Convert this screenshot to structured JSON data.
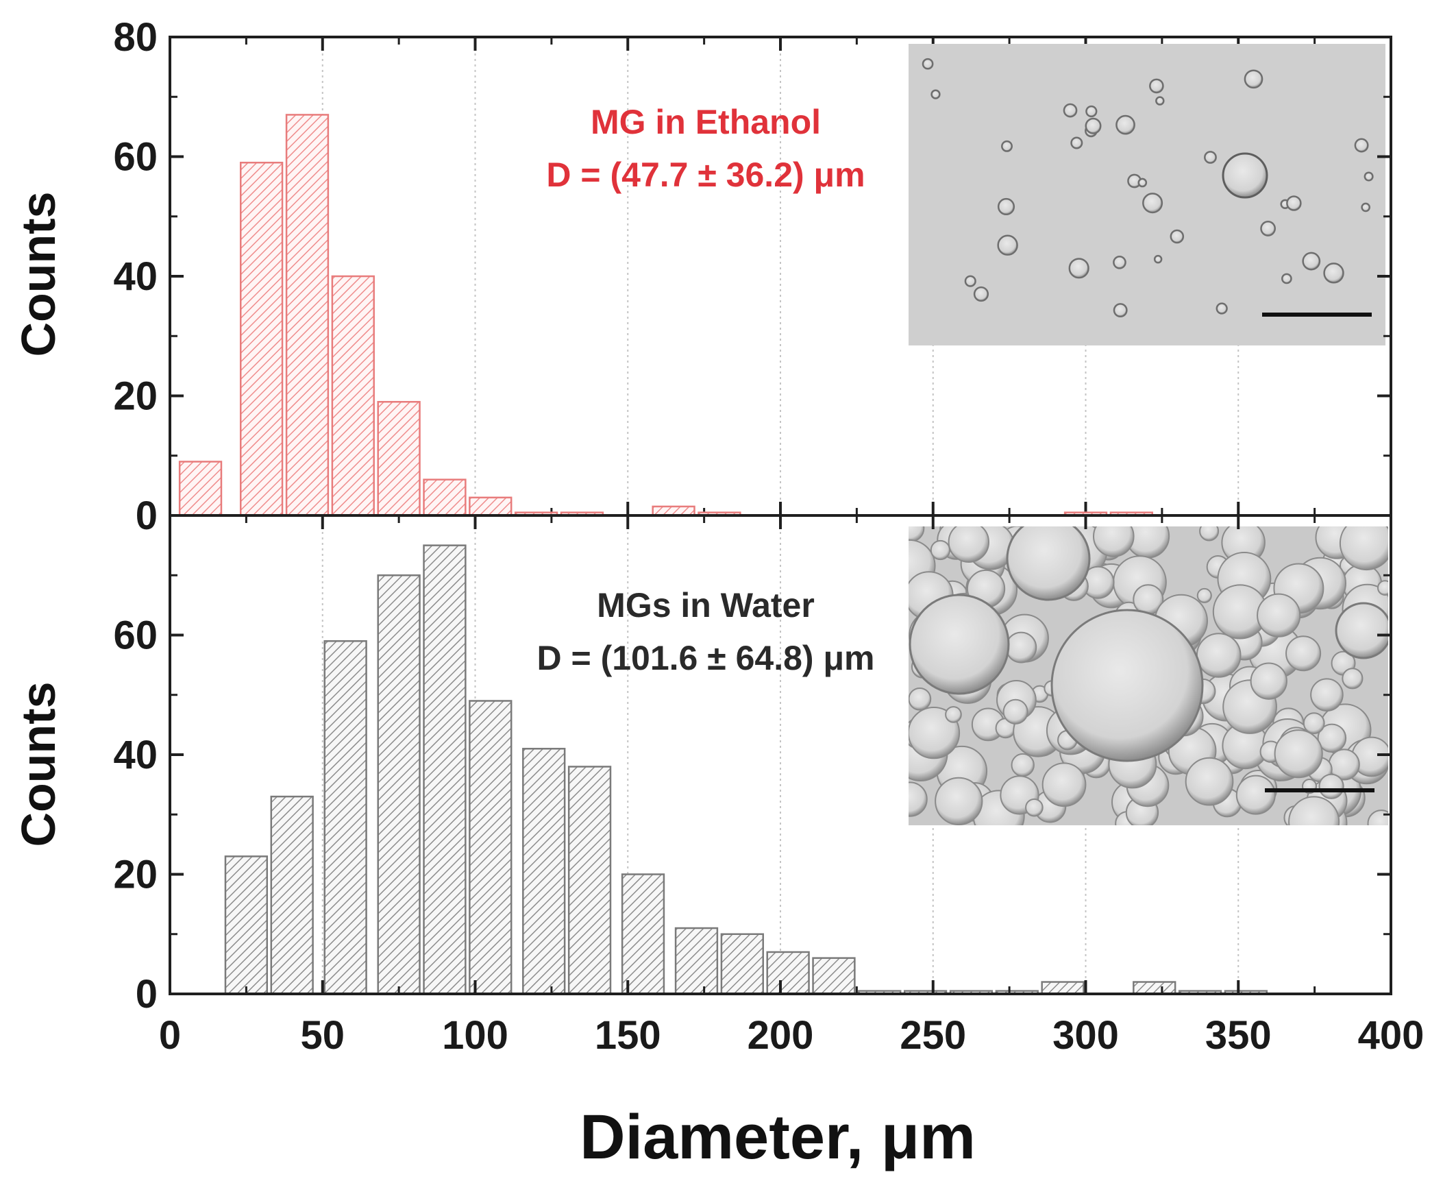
{
  "chart_data": [
    {
      "type": "bar",
      "panel": "top",
      "x": [
        10,
        30,
        45,
        60,
        75,
        90,
        105,
        120,
        135,
        150,
        165,
        180,
        300,
        315
      ],
      "values": [
        9,
        59,
        67,
        40,
        19,
        6,
        3,
        0.5,
        0.5,
        0,
        1.5,
        0.5,
        0.5,
        0.5
      ],
      "bin_width": 15,
      "color": "#f2a3a3",
      "ylabel": "Counts",
      "ylim": [
        0,
        80
      ],
      "yticks": [
        "0",
        "20",
        "40",
        "60",
        "80"
      ],
      "xlim": [
        0,
        400
      ],
      "grid": "vertical-dotted",
      "annotation": {
        "line1": "MG in Ethanol",
        "line2": "D = (47.7 ± 36.2) μm",
        "color": "#e0323a"
      },
      "inset": "micrograph-sparse-droplets"
    },
    {
      "type": "bar",
      "panel": "bottom",
      "x": [
        25,
        40,
        57.5,
        75,
        90,
        105,
        122.5,
        137.5,
        155,
        172.5,
        187.5,
        202.5,
        217.5,
        232.5,
        247.5,
        262.5,
        277.5,
        292.5,
        307.5,
        322.5,
        337.5,
        352.5,
        367.5
      ],
      "values": [
        23,
        33,
        59,
        70,
        75,
        49,
        41,
        38,
        20,
        11,
        10,
        7,
        6,
        0.5,
        0.5,
        0.5,
        0.5,
        2,
        0,
        2,
        0.5,
        0.5,
        0
      ],
      "bin_width": 15,
      "color": "#a6a6a6",
      "ylabel": "Counts",
      "ylim": [
        0,
        80
      ],
      "yticks": [
        "0",
        "20",
        "40",
        "60"
      ],
      "xlim": [
        0,
        400
      ],
      "xticks": [
        "0",
        "50",
        "100",
        "150",
        "200",
        "250",
        "300",
        "350",
        "400"
      ],
      "xlabel": "Diameter, μm",
      "grid": "vertical-dotted",
      "annotation": {
        "line1": "MGs in Water",
        "line2": "D = (101.6 ± 64.8) μm",
        "color": "#2a2a2a"
      },
      "inset": "micrograph-dense-droplets"
    }
  ]
}
